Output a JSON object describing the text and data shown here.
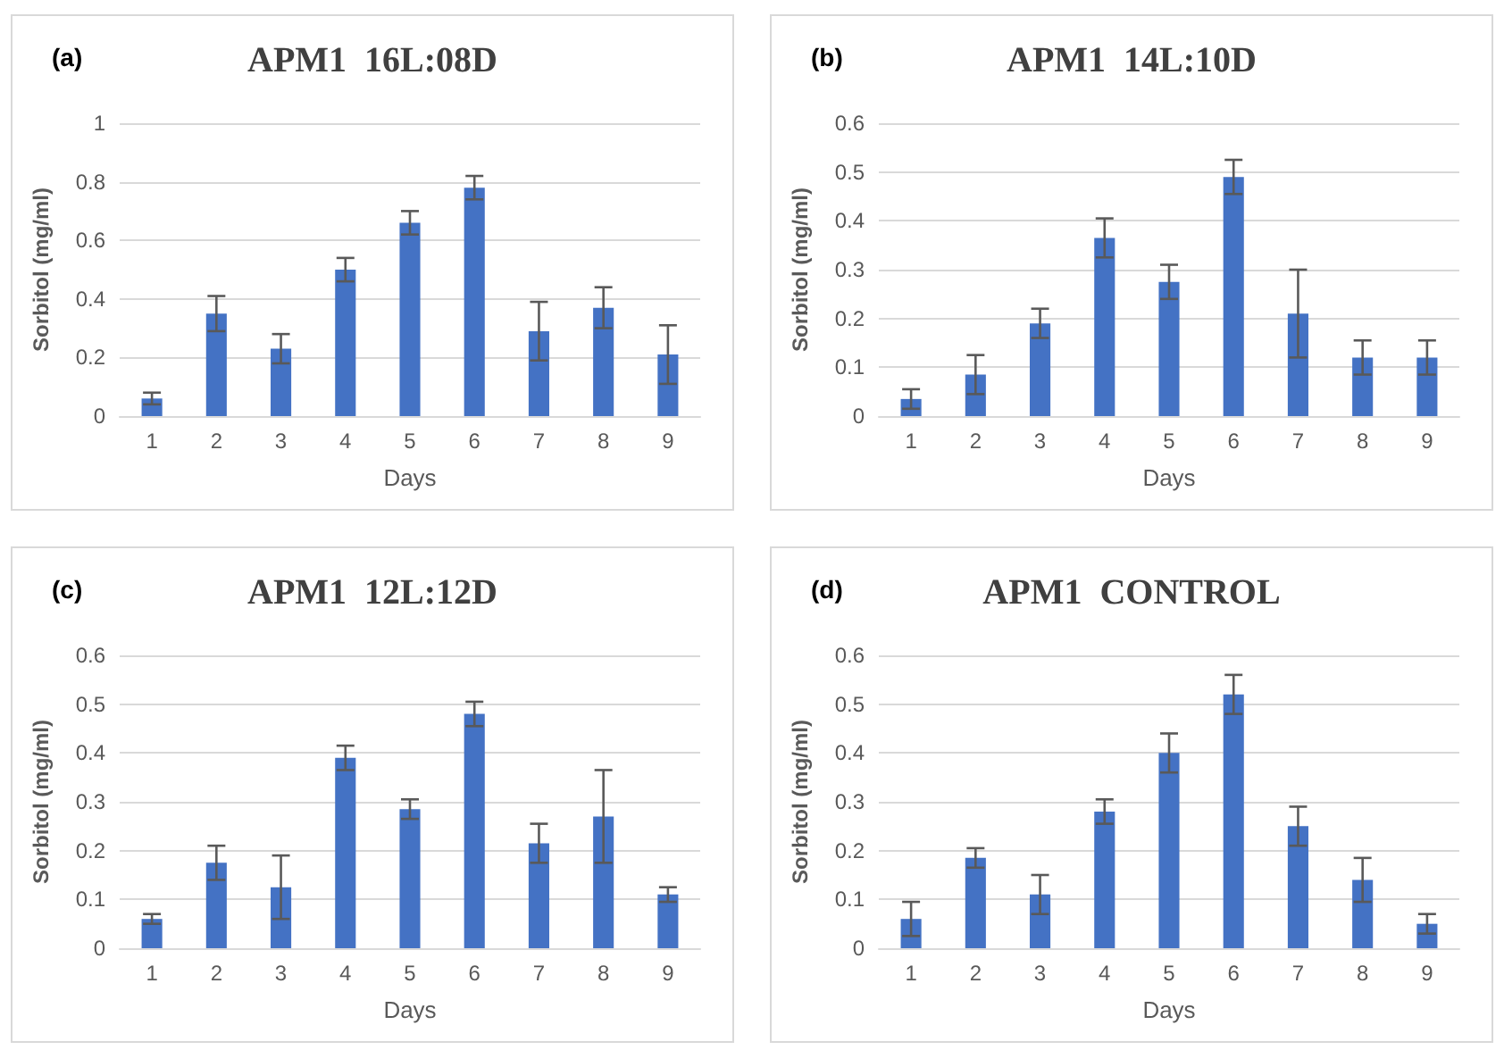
{
  "chart_data": [
    {
      "type": "bar",
      "title": "APM1  16L:08D",
      "annotations": [
        "(a)"
      ],
      "xlabel": "Days",
      "ylabel": "Sorbitol (mg/ml)",
      "categories": [
        "1",
        "2",
        "3",
        "4",
        "5",
        "6",
        "7",
        "8",
        "9"
      ],
      "color": "#4472c4",
      "values": [
        0.06,
        0.35,
        0.23,
        0.5,
        0.66,
        0.78,
        0.29,
        0.37,
        0.21
      ],
      "errors": [
        0.02,
        0.06,
        0.05,
        0.04,
        0.04,
        0.04,
        0.1,
        0.07,
        0.1
      ],
      "ylim": [
        0,
        1
      ],
      "yticks": [
        0,
        0.2,
        0.4,
        0.6,
        0.8,
        1
      ],
      "grid": "y"
    },
    {
      "type": "bar",
      "title": "APM1  14L:10D",
      "annotations": [
        "(b)"
      ],
      "xlabel": "Days",
      "ylabel": "Sorbitol (mg/ml)",
      "categories": [
        "1",
        "2",
        "3",
        "4",
        "5",
        "6",
        "7",
        "8",
        "9"
      ],
      "color": "#4472c4",
      "values": [
        0.035,
        0.085,
        0.19,
        0.365,
        0.275,
        0.49,
        0.21,
        0.12,
        0.12
      ],
      "errors": [
        0.02,
        0.04,
        0.03,
        0.04,
        0.035,
        0.035,
        0.09,
        0.035,
        0.035
      ],
      "ylim": [
        0,
        0.6
      ],
      "yticks": [
        0,
        0.1,
        0.2,
        0.3,
        0.4,
        0.5,
        0.6
      ],
      "grid": "y"
    },
    {
      "type": "bar",
      "title": "APM1  12L:12D",
      "annotations": [
        "(c)"
      ],
      "xlabel": "Days",
      "ylabel": "Sorbitol (mg/ml)",
      "categories": [
        "1",
        "2",
        "3",
        "4",
        "5",
        "6",
        "7",
        "8",
        "9"
      ],
      "color": "#4472c4",
      "values": [
        0.06,
        0.175,
        0.125,
        0.39,
        0.285,
        0.48,
        0.215,
        0.27,
        0.11
      ],
      "errors": [
        0.01,
        0.035,
        0.065,
        0.025,
        0.02,
        0.025,
        0.04,
        0.095,
        0.015
      ],
      "ylim": [
        0,
        0.6
      ],
      "yticks": [
        0,
        0.1,
        0.2,
        0.3,
        0.4,
        0.5,
        0.6
      ],
      "grid": "y"
    },
    {
      "type": "bar",
      "title": "APM1  CONTROL",
      "annotations": [
        "(d)"
      ],
      "xlabel": "Days",
      "ylabel": "Sorbitol (mg/ml)",
      "categories": [
        "1",
        "2",
        "3",
        "4",
        "5",
        "6",
        "7",
        "8",
        "9"
      ],
      "color": "#4472c4",
      "values": [
        0.06,
        0.185,
        0.11,
        0.28,
        0.4,
        0.52,
        0.25,
        0.14,
        0.05
      ],
      "errors": [
        0.035,
        0.02,
        0.04,
        0.025,
        0.04,
        0.04,
        0.04,
        0.045,
        0.02
      ],
      "ylim": [
        0,
        0.6
      ],
      "yticks": [
        0,
        0.1,
        0.2,
        0.3,
        0.4,
        0.5,
        0.6
      ],
      "grid": "y"
    }
  ]
}
